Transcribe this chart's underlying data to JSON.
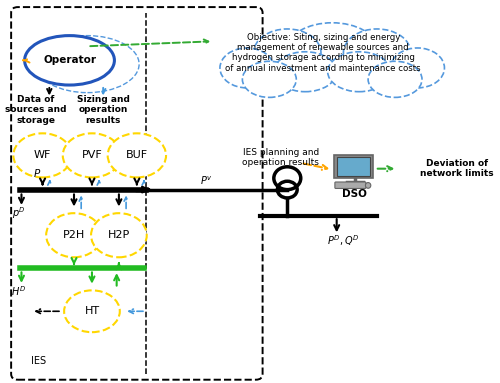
{
  "bg_color": "#ffffff",
  "objective_text": "Objective: Siting, sizing and energy\nmanagement of renewable sources and\nhydrogen storage according to minimizing\nof annual investment and maintenance costs",
  "operator_text": "Operator",
  "node_labels": [
    "WF",
    "PVF",
    "BUF",
    "P2H",
    "H2P",
    "HT"
  ],
  "label_P": "$P$",
  "label_PD_left": "$p^D$",
  "label_HD": "$H^D$",
  "label_Pv": "$P^v$",
  "label_PDQD": "$P^D, Q^D$",
  "label_IES": "IES planning and\noperation results",
  "label_deviation": "Deviation of\nnetwork limits",
  "label_data": "Data of\nsources and\nstorage",
  "label_sizing": "Sizing and\noperation\nresults",
  "label_DSO": "DSO",
  "label_IES_bottom": "IES"
}
